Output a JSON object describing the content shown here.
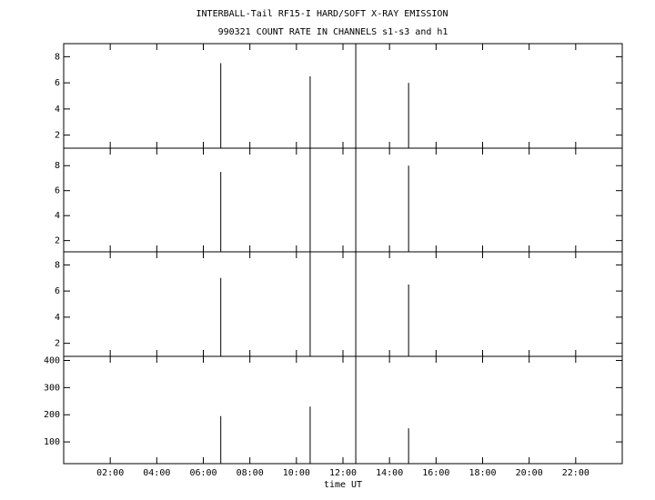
{
  "chart_data": [
    {
      "type": "spike",
      "title": "INTERBALL-Tail RF15-I HARD/SOFT X-RAY EMISSION",
      "subtitle": "990321  COUNT RATE IN CHANNELS s1-s3 and h1",
      "x": [
        6.75,
        10.59,
        12.55,
        14.82
      ],
      "values": [
        7.5,
        6.5,
        9,
        6
      ],
      "xlim": [
        0,
        24
      ],
      "ylim": [
        1,
        9
      ],
      "yticks": [
        2,
        4,
        6,
        8
      ]
    },
    {
      "type": "spike",
      "x": [
        6.75,
        10.59,
        12.55,
        14.82
      ],
      "values": [
        7.5,
        9.4,
        9.4,
        8
      ],
      "xlim": [
        0,
        24
      ],
      "ylim": [
        1.1,
        9.4
      ],
      "yticks": [
        2,
        4,
        6,
        8
      ]
    },
    {
      "type": "spike",
      "x": [
        6.75,
        10.59,
        12.55,
        14.82
      ],
      "values": [
        7,
        9,
        9,
        6.5
      ],
      "xlim": [
        0,
        24
      ],
      "ylim": [
        1,
        9
      ],
      "yticks": [
        2,
        4,
        6,
        8
      ]
    },
    {
      "type": "spike",
      "x": [
        6.75,
        10.59,
        12.55,
        14.82
      ],
      "values": [
        195,
        230,
        415,
        150
      ],
      "xlim": [
        0,
        24
      ],
      "ylim": [
        20,
        415
      ],
      "yticks": [
        100,
        200,
        300,
        400
      ],
      "xlabel": "time UT",
      "xticks": [
        {
          "value": 2,
          "label": "02:00"
        },
        {
          "value": 4,
          "label": "04:00"
        },
        {
          "value": 6,
          "label": "06:00"
        },
        {
          "value": 8,
          "label": "08:00"
        },
        {
          "value": 10,
          "label": "10:00"
        },
        {
          "value": 12,
          "label": "12:00"
        },
        {
          "value": 14,
          "label": "14:00"
        },
        {
          "value": 16,
          "label": "16:00"
        },
        {
          "value": 18,
          "label": "18:00"
        },
        {
          "value": 20,
          "label": "20:00"
        },
        {
          "value": 22,
          "label": "22:00"
        }
      ]
    }
  ]
}
